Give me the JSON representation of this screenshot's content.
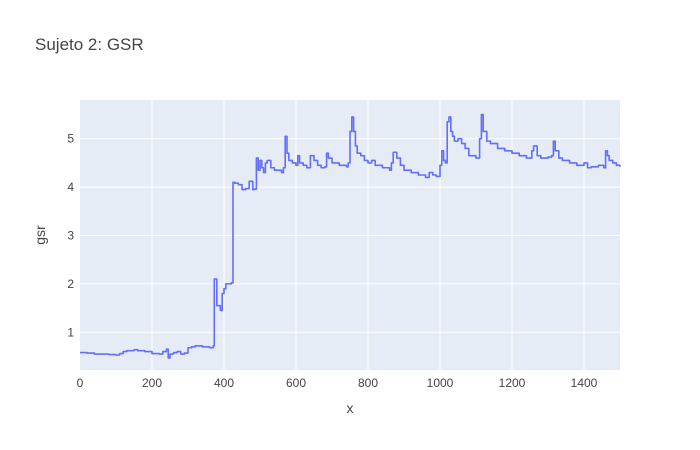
{
  "chart_data": {
    "type": "line",
    "title": "Sujeto 2: GSR",
    "xlabel": "x",
    "ylabel": "gsr",
    "xlim": [
      0,
      1500
    ],
    "ylim": [
      0.22,
      5.8
    ],
    "x_ticks": [
      0,
      200,
      400,
      600,
      800,
      1000,
      1200,
      1400
    ],
    "y_ticks": [
      1,
      2,
      3,
      4,
      5
    ],
    "grid": true,
    "legend": "none",
    "colors": {
      "line": "#636efa",
      "plot_bg": "#e5ecf6",
      "grid": "#ffffff",
      "paper_bg": "#ffffff"
    },
    "series": [
      {
        "x": [
          0,
          20,
          40,
          60,
          80,
          100,
          110,
          120,
          130,
          150,
          160,
          180,
          200,
          220,
          230,
          240,
          245,
          250,
          260,
          270,
          280,
          290,
          300,
          310,
          320,
          340,
          360,
          370,
          373,
          380,
          390,
          395,
          400,
          405,
          410,
          420,
          425,
          430,
          440,
          450,
          460,
          470,
          480,
          485,
          490,
          495,
          500,
          505,
          510,
          515,
          520,
          530,
          540,
          560,
          565,
          570,
          575,
          580,
          590,
          600,
          605,
          610,
          620,
          630,
          640,
          650,
          660,
          670,
          680,
          685,
          690,
          700,
          720,
          730,
          740,
          745,
          750,
          755,
          760,
          765,
          770,
          780,
          790,
          800,
          810,
          820,
          840,
          860,
          865,
          870,
          880,
          890,
          900,
          920,
          940,
          960,
          970,
          980,
          990,
          1000,
          1005,
          1010,
          1015,
          1020,
          1025,
          1030,
          1035,
          1040,
          1050,
          1060,
          1070,
          1080,
          1100,
          1110,
          1115,
          1120,
          1130,
          1140,
          1160,
          1180,
          1200,
          1220,
          1240,
          1250,
          1255,
          1260,
          1270,
          1280,
          1300,
          1310,
          1315,
          1320,
          1330,
          1340,
          1360,
          1380,
          1400,
          1410,
          1420,
          1440,
          1455,
          1460,
          1465,
          1470,
          1480,
          1490,
          1500
        ],
        "y": [
          0.58,
          0.57,
          0.55,
          0.55,
          0.54,
          0.53,
          0.56,
          0.6,
          0.62,
          0.64,
          0.62,
          0.6,
          0.56,
          0.55,
          0.6,
          0.65,
          0.47,
          0.55,
          0.58,
          0.6,
          0.55,
          0.57,
          0.68,
          0.7,
          0.72,
          0.7,
          0.68,
          0.72,
          2.1,
          1.55,
          1.45,
          1.8,
          1.9,
          2.0,
          2.0,
          2.02,
          4.1,
          4.08,
          4.05,
          3.95,
          3.97,
          4.12,
          3.95,
          3.96,
          4.6,
          4.35,
          4.55,
          4.4,
          4.3,
          4.5,
          4.55,
          4.4,
          4.35,
          4.3,
          4.4,
          5.05,
          4.7,
          4.55,
          4.5,
          4.45,
          4.65,
          4.5,
          4.45,
          4.4,
          4.65,
          4.55,
          4.45,
          4.4,
          4.42,
          4.7,
          4.6,
          4.5,
          4.45,
          4.45,
          4.42,
          4.5,
          5.15,
          5.45,
          5.15,
          4.85,
          4.7,
          4.65,
          4.55,
          4.5,
          4.55,
          4.45,
          4.4,
          4.35,
          4.5,
          4.72,
          4.6,
          4.45,
          4.35,
          4.3,
          4.25,
          4.2,
          4.3,
          4.25,
          4.22,
          4.45,
          4.75,
          4.55,
          4.5,
          5.35,
          5.45,
          5.15,
          5.05,
          4.95,
          5.0,
          4.9,
          4.8,
          4.65,
          4.6,
          5.0,
          5.5,
          5.15,
          4.95,
          4.9,
          4.8,
          4.75,
          4.7,
          4.65,
          4.6,
          4.6,
          4.75,
          4.85,
          4.65,
          4.6,
          4.62,
          4.65,
          4.95,
          4.75,
          4.6,
          4.55,
          4.5,
          4.45,
          4.5,
          4.4,
          4.42,
          4.45,
          4.4,
          4.75,
          4.65,
          4.55,
          4.5,
          4.45,
          4.42
        ]
      }
    ]
  }
}
